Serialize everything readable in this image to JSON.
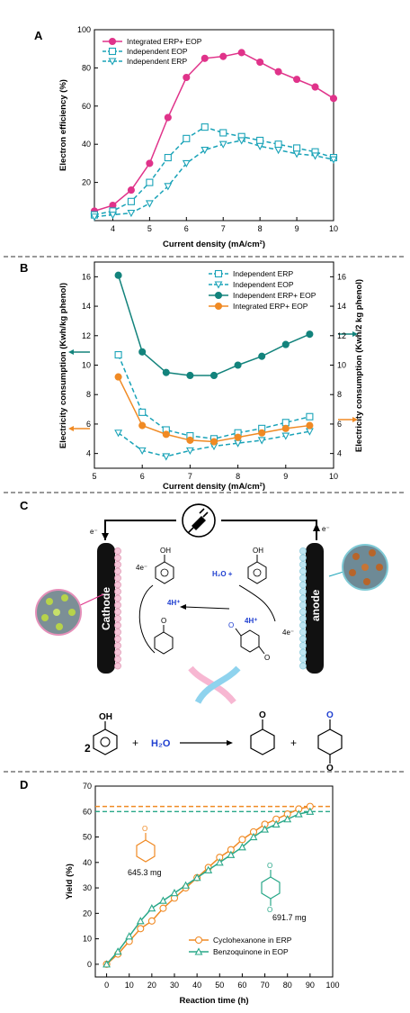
{
  "panels": {
    "A": "A",
    "B": "B",
    "C": "C",
    "D": "D"
  },
  "colors": {
    "pink": "#e0338a",
    "cyan": "#1aa3b8",
    "teal": "#13837c",
    "orange": "#f08a24",
    "green": "#2aa889",
    "blue": "#1f3fd0"
  },
  "chart_data": [
    {
      "id": "A",
      "type": "line",
      "title": "",
      "xlabel": "Current density (mA/cm²)",
      "ylabel": "Electron efficiency (%)",
      "xlim": [
        3.5,
        10
      ],
      "ylim": [
        0,
        100
      ],
      "xticks": [
        4,
        5,
        6,
        7,
        8,
        9,
        10
      ],
      "yticks": [
        20,
        40,
        60,
        80,
        100
      ],
      "legend_position": "top-left",
      "grid": false,
      "series": [
        {
          "name": "Integrated ERP+ EOP",
          "color": "#e0338a",
          "marker": "circle",
          "dashed": false,
          "x": [
            3.5,
            4,
            4.5,
            5,
            5.5,
            6,
            6.5,
            7,
            7.5,
            8,
            8.5,
            9,
            9.5,
            10
          ],
          "y": [
            5,
            8,
            16,
            30,
            54,
            75,
            85,
            86,
            88,
            83,
            78,
            74,
            70,
            64
          ]
        },
        {
          "name": "Independent EOP",
          "color": "#1aa3b8",
          "marker": "square",
          "dashed": true,
          "x": [
            3.5,
            4,
            4.5,
            5,
            5.5,
            6,
            6.5,
            7,
            7.5,
            8,
            8.5,
            9,
            9.5,
            10
          ],
          "y": [
            3,
            5,
            10,
            20,
            33,
            43,
            49,
            46,
            44,
            42,
            40,
            38,
            36,
            33
          ]
        },
        {
          "name": "Independent ERP",
          "color": "#1aa3b8",
          "marker": "triangle-down",
          "dashed": true,
          "x": [
            3.5,
            4,
            4.5,
            5,
            5.5,
            6,
            6.5,
            7,
            7.5,
            8,
            8.5,
            9,
            9.5,
            10
          ],
          "y": [
            2,
            3,
            4,
            9,
            18,
            30,
            37,
            40,
            42,
            39,
            37,
            35,
            34,
            32
          ]
        }
      ]
    },
    {
      "id": "B",
      "type": "line",
      "title": "",
      "xlabel": "Current density (mA/cm²)",
      "ylabel": "Electricity consumption (Kwh/kg phenol)",
      "ylabel_right": "Electricity consumption (Kwh/2 kg phenol)",
      "xlim": [
        5,
        10
      ],
      "ylim": [
        3,
        17
      ],
      "xticks": [
        5,
        6,
        7,
        8,
        9,
        10
      ],
      "yticks": [
        4,
        6,
        8,
        10,
        12,
        14,
        16
      ],
      "yticks_right": [
        4,
        6,
        8,
        10,
        12,
        14,
        16
      ],
      "legend_position": "top-right",
      "grid": false,
      "series": [
        {
          "name": "Independent ERP",
          "color": "#1aa3b8",
          "marker": "square",
          "dashed": true,
          "axis": "left",
          "x": [
            5.5,
            6,
            6.5,
            7,
            7.5,
            8,
            8.5,
            9,
            9.5
          ],
          "y": [
            10.7,
            6.8,
            5.6,
            5.2,
            5.0,
            5.4,
            5.7,
            6.1,
            6.5
          ]
        },
        {
          "name": "Independent EOP",
          "color": "#1aa3b8",
          "marker": "triangle-down",
          "dashed": true,
          "axis": "left",
          "x": [
            5.5,
            6,
            6.5,
            7,
            7.5,
            8,
            8.5,
            9,
            9.5
          ],
          "y": [
            5.4,
            4.2,
            3.8,
            4.2,
            4.5,
            4.7,
            4.9,
            5.2,
            5.5
          ]
        },
        {
          "name": "Independent ERP+ EOP",
          "color": "#13837c",
          "marker": "circle",
          "dashed": false,
          "axis": "right",
          "x": [
            5.5,
            6,
            6.5,
            7,
            7.5,
            8,
            8.5,
            9,
            9.5
          ],
          "y": [
            16.1,
            10.9,
            9.5,
            9.3,
            9.3,
            10.0,
            10.6,
            11.4,
            12.1
          ]
        },
        {
          "name": "Integrated ERP+ EOP",
          "color": "#f08a24",
          "marker": "circle",
          "dashed": false,
          "axis": "right",
          "x": [
            5.5,
            6,
            6.5,
            7,
            7.5,
            8,
            8.5,
            9,
            9.5
          ],
          "y": [
            9.2,
            5.9,
            5.3,
            4.9,
            4.8,
            5.1,
            5.4,
            5.7,
            5.9
          ]
        }
      ]
    },
    {
      "id": "D",
      "type": "line",
      "title": "",
      "xlabel": "Reaction time (h)",
      "ylabel": "Yield (%)",
      "xlim": [
        -5,
        100
      ],
      "ylim": [
        -5,
        70
      ],
      "xticks": [
        0,
        10,
        20,
        30,
        40,
        50,
        60,
        70,
        80,
        90,
        100
      ],
      "yticks": [
        0,
        10,
        20,
        30,
        40,
        50,
        60,
        70
      ],
      "legend_position": "bottom-right",
      "grid": false,
      "reference_lines": [
        {
          "y": 62,
          "color": "#f08a24"
        },
        {
          "y": 60,
          "color": "#2aa889"
        }
      ],
      "series": [
        {
          "name": "Cyclohexanone in ERP",
          "color": "#f08a24",
          "marker": "circle",
          "x": [
            0,
            5,
            10,
            15,
            20,
            25,
            30,
            35,
            40,
            45,
            50,
            55,
            60,
            65,
            70,
            75,
            80,
            85,
            90
          ],
          "y": [
            0,
            4,
            9,
            14,
            17,
            22,
            26,
            30,
            34,
            38,
            42,
            45,
            49,
            52,
            55,
            57,
            59,
            61,
            62
          ]
        },
        {
          "name": "Benzoquinone in EOP",
          "color": "#2aa889",
          "marker": "triangle-up",
          "x": [
            0,
            5,
            10,
            15,
            20,
            25,
            30,
            35,
            40,
            45,
            50,
            55,
            60,
            65,
            70,
            75,
            80,
            85,
            90
          ],
          "y": [
            0,
            5,
            11,
            17,
            22,
            25,
            28,
            31,
            34,
            37,
            40,
            43,
            46,
            50,
            53,
            55,
            57,
            59,
            60
          ]
        }
      ]
    }
  ],
  "panelC": {
    "electrons": "e⁻",
    "cathode": "Cathode",
    "anode": "anode",
    "four_e": "4e⁻",
    "four_h_left": "4H⁺",
    "four_h_right": "4H⁺",
    "h2o_plus": "H₂O  +",
    "oh": "OH",
    "o": "O",
    "eq_coef": "2",
    "eq_plus1": "+",
    "eq_h2o": "H₂O",
    "eq_plus2": "+"
  },
  "panelD_annot": {
    "mass1": "645.3 mg",
    "mass2": "691.7 mg",
    "o": "O"
  }
}
